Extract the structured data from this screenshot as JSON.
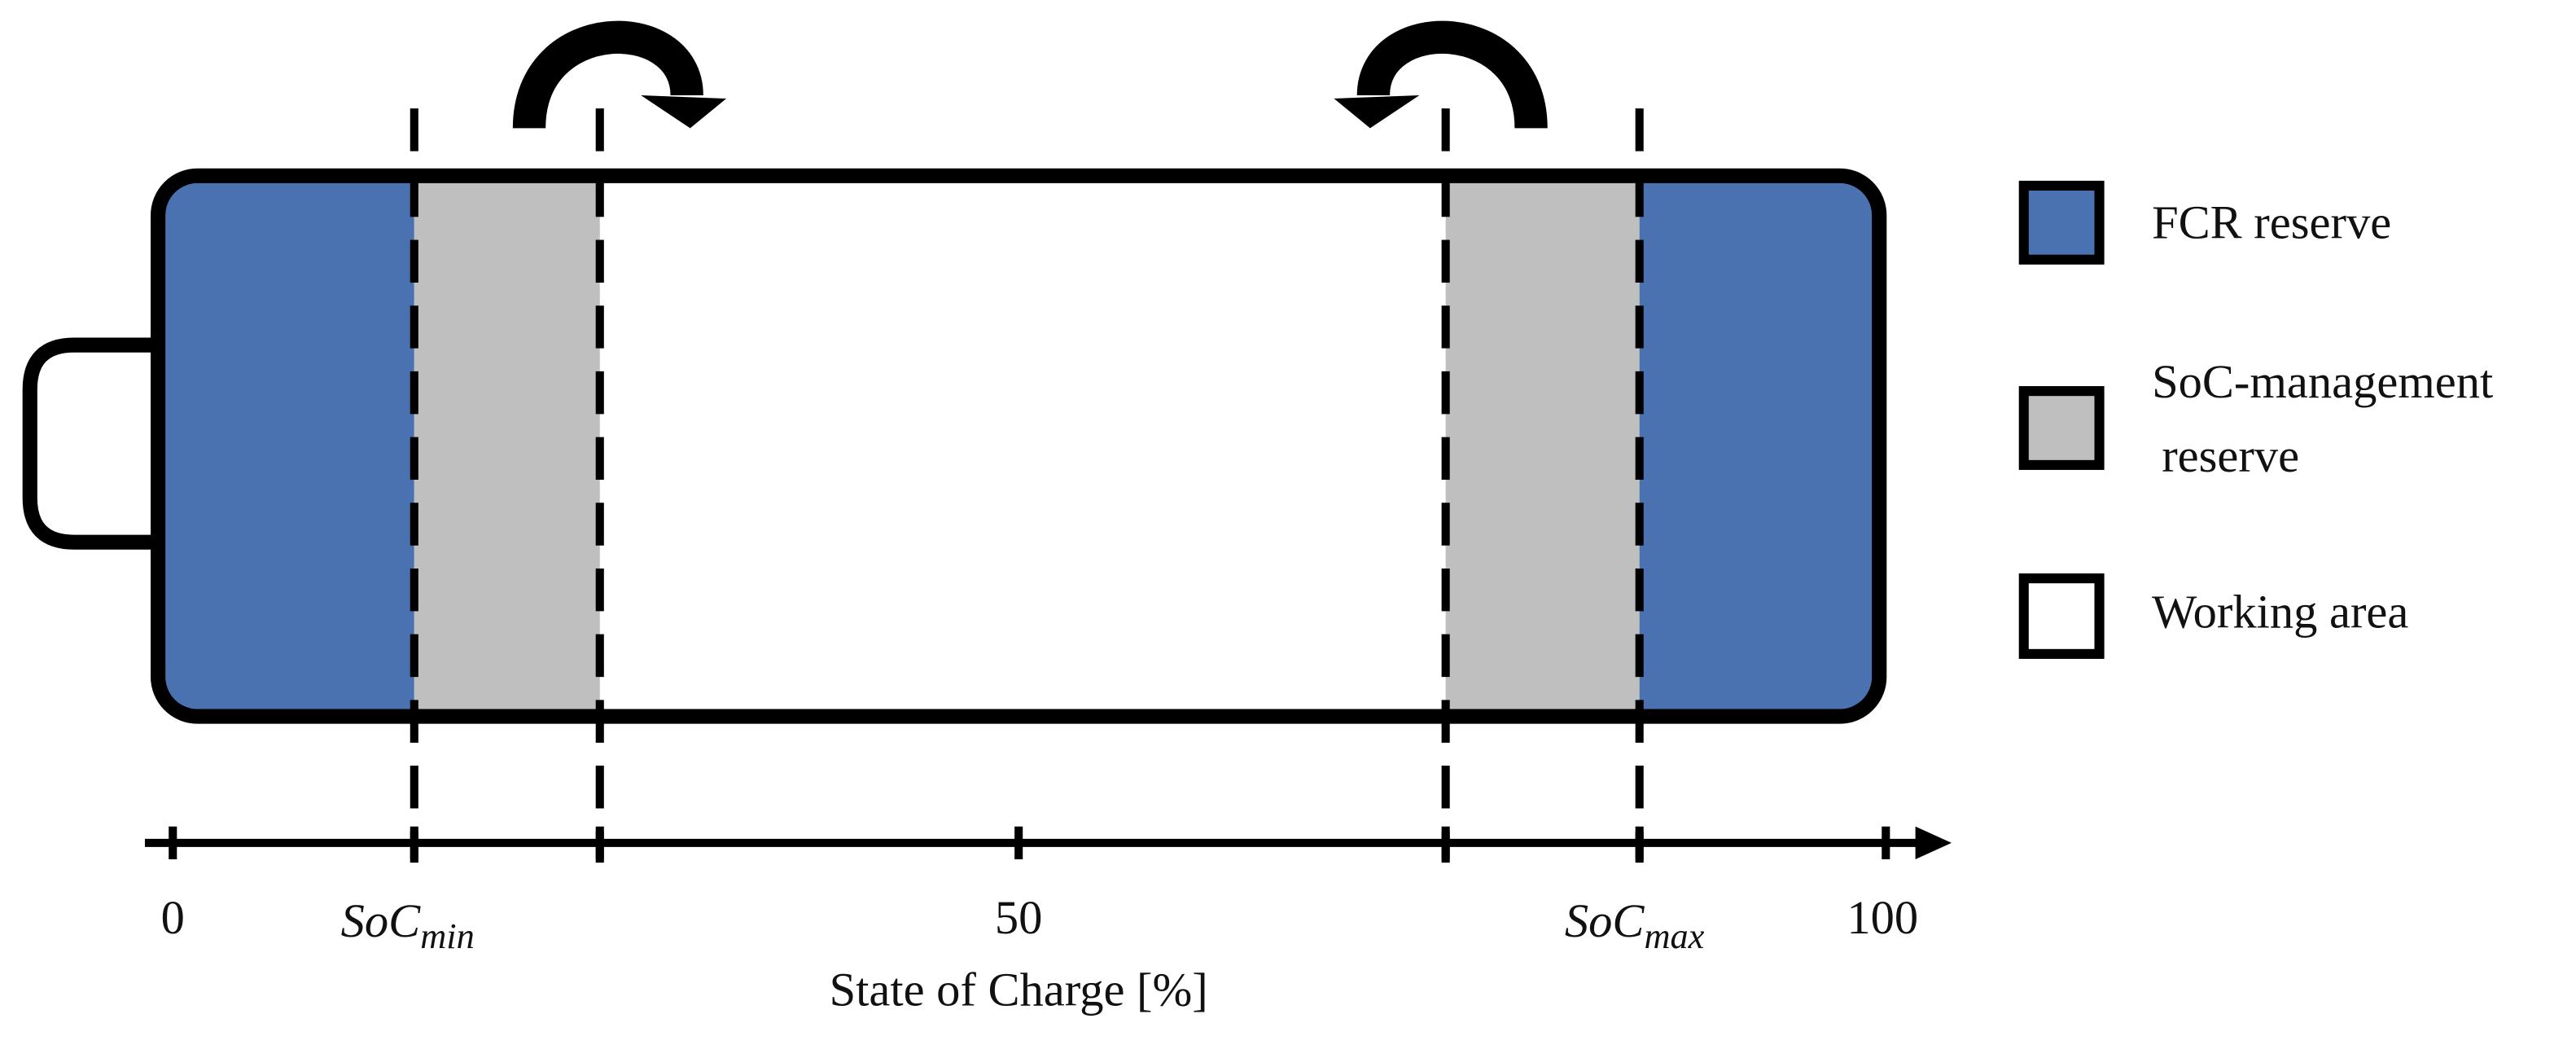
{
  "legend": [
    {
      "label": [
        "FCR reserve"
      ]
    },
    {
      "label": [
        "SoC-management",
        "reserve"
      ]
    },
    {
      "label": [
        "Working area"
      ]
    }
  ],
  "axis": {
    "labels": [
      "0",
      {
        "base": "SoC",
        "sub": "min"
      },
      "50",
      {
        "base": "SoC",
        "sub": "max"
      },
      "100"
    ],
    "title": "State of Charge [%]"
  }
}
